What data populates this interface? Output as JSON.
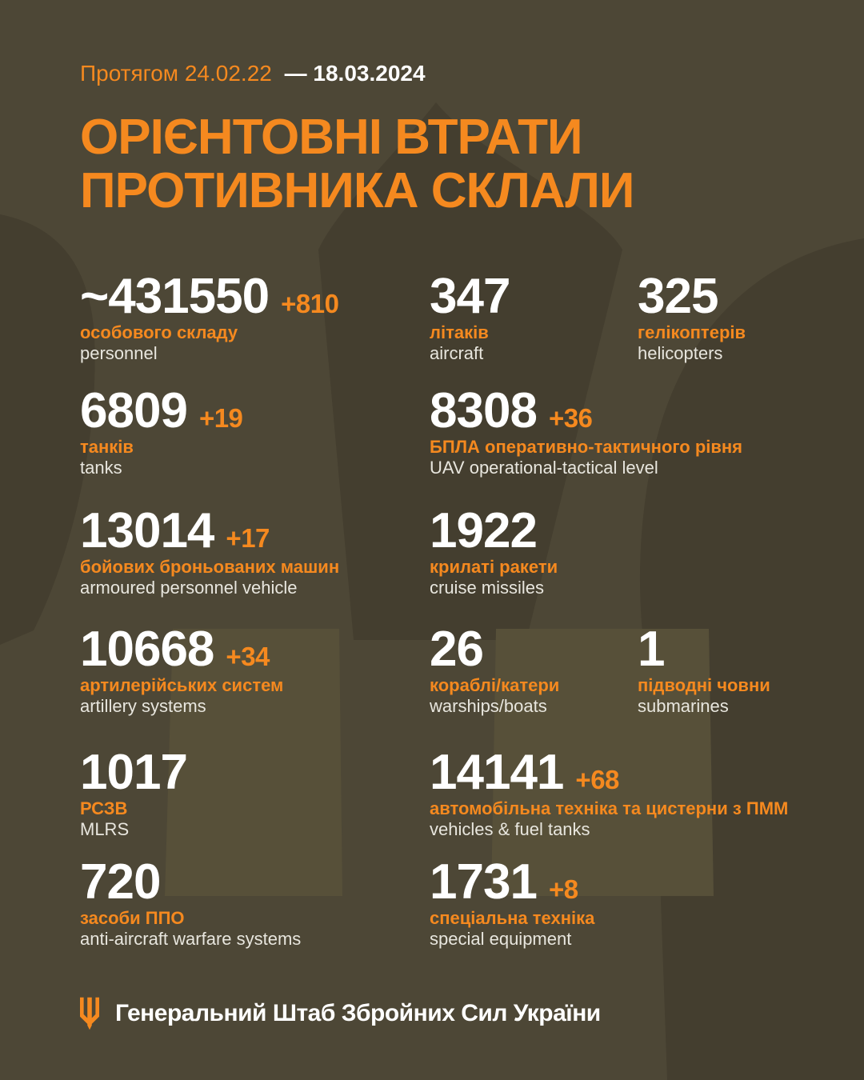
{
  "header": {
    "period_prefix": "Протягом 24.02.22",
    "period_date": "— 18.03.2024",
    "title_line1": "ОРІЄНТОВНІ ВТРАТИ",
    "title_line2": "ПРОТИВНИКА СКЛАЛИ"
  },
  "stats": [
    {
      "value": "~431550",
      "delta": "+810",
      "label_uk": "особового складу",
      "label_en": "personnel",
      "col": 1,
      "row": 1
    },
    {
      "value": "347",
      "delta": "",
      "label_uk": "літаків",
      "label_en": "aircraft",
      "col": 2,
      "row": 1
    },
    {
      "value": "325",
      "delta": "",
      "label_uk": "гелікоптерів",
      "label_en": "helicopters",
      "col": 3,
      "row": 1
    },
    {
      "value": "6809",
      "delta": "+19",
      "label_uk": "танків",
      "label_en": "tanks",
      "col": 1,
      "row": 2
    },
    {
      "value": "8308",
      "delta": "+36",
      "label_uk": "БПЛА оперативно-тактичного рівня",
      "label_en": "UAV operational-tactical level",
      "col": 2,
      "row": 2
    },
    {
      "value": "13014",
      "delta": "+17",
      "label_uk": "бойових броньованих машин",
      "label_en": "armoured personnel vehicle",
      "col": 1,
      "row": 3
    },
    {
      "value": "1922",
      "delta": "",
      "label_uk": "крилаті ракети",
      "label_en": "cruise missiles",
      "col": 2,
      "row": 3
    },
    {
      "value": "10668",
      "delta": "+34",
      "label_uk": "артилерійських систем",
      "label_en": "artillery systems",
      "col": 1,
      "row": 4
    },
    {
      "value": "26",
      "delta": "",
      "label_uk": "кораблі/катери",
      "label_en": "warships/boats",
      "col": 2,
      "row": 4
    },
    {
      "value": "1",
      "delta": "",
      "label_uk": "підводні човни",
      "label_en": "submarines",
      "col": 3,
      "row": 4
    },
    {
      "value": "1017",
      "delta": "",
      "label_uk": "РСЗВ",
      "label_en": "MLRS",
      "col": 1,
      "row": 5
    },
    {
      "value": "14141",
      "delta": "+68",
      "label_uk": "автомобільна техніка та цистерни з ПММ",
      "label_en": "vehicles & fuel tanks",
      "col": 2,
      "row": 5
    },
    {
      "value": "720",
      "delta": "",
      "label_uk": "засоби ППО",
      "label_en": "anti-aircraft warfare systems",
      "col": 1,
      "row": 6
    },
    {
      "value": "1731",
      "delta": "+8",
      "label_uk": "спеціальна техніка",
      "label_en": "special equipment",
      "col": 2,
      "row": 6
    }
  ],
  "footer": {
    "org": "Генеральний Штаб Збройних Сил України",
    "icon": "trident-icon"
  },
  "colors": {
    "background": "#4D4736",
    "watermark_dark": "#443E2F",
    "watermark_light": "#575039",
    "accent_orange": "#F5891F",
    "number_white": "#FFFFFF",
    "english_gray": "#E8E6DE"
  },
  "chart_data": {
    "type": "table",
    "title": "ОРІЄНТОВНІ ВТРАТИ ПРОТИВНИКА СКЛАЛИ",
    "subtitle": "Протягом 24.02.22 — 18.03.2024",
    "categories": [
      "personnel",
      "aircraft",
      "helicopters",
      "tanks",
      "UAV operational-tactical level",
      "armoured personnel vehicle",
      "cruise missiles",
      "artillery systems",
      "warships/boats",
      "submarines",
      "MLRS",
      "vehicles & fuel tanks",
      "anti-aircraft warfare systems",
      "special equipment"
    ],
    "values": [
      431550,
      347,
      325,
      6809,
      8308,
      13014,
      1922,
      10668,
      26,
      1,
      1017,
      14141,
      720,
      1731
    ],
    "daily_change": [
      810,
      0,
      0,
      19,
      36,
      17,
      0,
      34,
      0,
      0,
      0,
      68,
      0,
      8
    ],
    "source": "Генеральний Штаб Збройних Сил України"
  }
}
